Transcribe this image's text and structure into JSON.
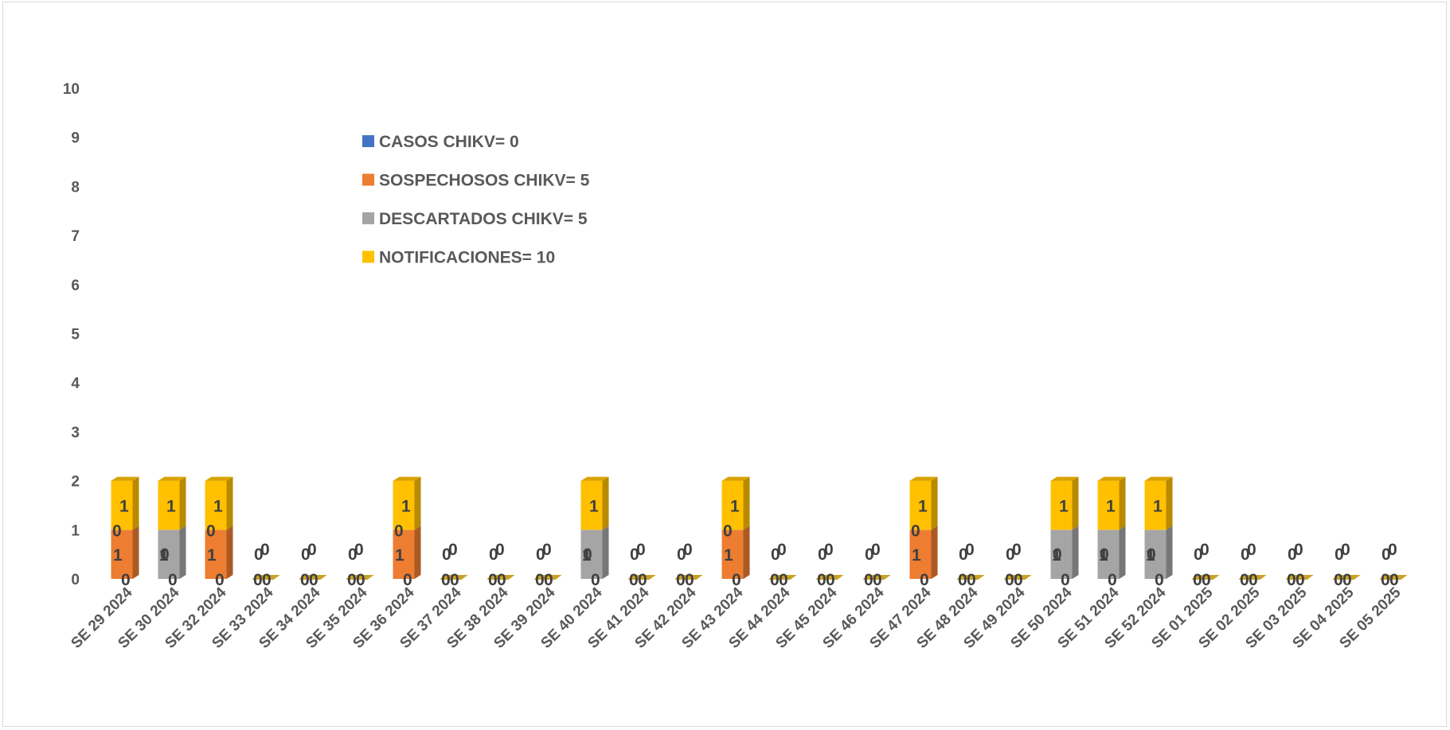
{
  "chart_data": {
    "type": "bar",
    "stacked": true,
    "three_d": true,
    "title": "",
    "xlabel": "",
    "ylabel": "",
    "ylim": [
      0,
      10
    ],
    "y_ticks": [
      "0",
      "1",
      "2",
      "3",
      "4",
      "5",
      "6",
      "7",
      "8",
      "9",
      "10"
    ],
    "grid": false,
    "legend_position": "top-left-inside",
    "categories": [
      "SE 29 2024",
      "SE 30 2024",
      "SE 32 2024",
      "SE 33 2024",
      "SE 34 2024",
      "SE 35 2024",
      "SE 36 2024",
      "SE 37 2024",
      "SE 38 2024",
      "SE 39 2024",
      "SE 40 2024",
      "SE 41 2024",
      "SE 42 2024",
      "SE 43 2024",
      "SE 44 2024",
      "SE 45 2024",
      "SE 46 2024",
      "SE 47 2024",
      "SE 48 2024",
      "SE 49 2024",
      "SE 50 2024",
      "SE 51 2024",
      "SE 52 2024",
      "SE 01 2025",
      "SE 02 2025",
      "SE 03 2025",
      "SE 04 2025",
      "SE 05 2025"
    ],
    "series": [
      {
        "name": "CASOS CHIKV= 0",
        "color": "#4472c4",
        "values": [
          0,
          0,
          0,
          0,
          0,
          0,
          0,
          0,
          0,
          0,
          0,
          0,
          0,
          0,
          0,
          0,
          0,
          0,
          0,
          0,
          0,
          0,
          0,
          0,
          0,
          0,
          0,
          0
        ]
      },
      {
        "name": "SOSPECHOSOS CHIKV= 5",
        "color": "#ed7d31",
        "values": [
          1,
          0,
          1,
          0,
          0,
          0,
          1,
          0,
          0,
          0,
          0,
          0,
          0,
          1,
          0,
          0,
          0,
          1,
          0,
          0,
          0,
          0,
          0,
          0,
          0,
          0,
          0,
          0
        ]
      },
      {
        "name": "DESCARTADOS CHIKV= 5",
        "color": "#a5a5a5",
        "values": [
          0,
          1,
          0,
          0,
          0,
          0,
          0,
          0,
          0,
          0,
          1,
          0,
          0,
          0,
          0,
          0,
          0,
          0,
          0,
          0,
          1,
          1,
          1,
          0,
          0,
          0,
          0,
          0
        ]
      },
      {
        "name": "NOTIFICACIONES= 10",
        "color": "#ffc000",
        "values": [
          1,
          1,
          1,
          0,
          0,
          0,
          1,
          0,
          0,
          0,
          1,
          0,
          0,
          1,
          0,
          0,
          0,
          1,
          0,
          0,
          1,
          1,
          1,
          0,
          0,
          0,
          0,
          0
        ]
      }
    ]
  }
}
